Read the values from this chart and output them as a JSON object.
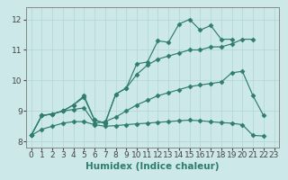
{
  "xlabel": "Humidex (Indice chaleur)",
  "xlim": [
    -0.5,
    23.5
  ],
  "ylim": [
    7.8,
    12.4
  ],
  "bg_color": "#cde8e8",
  "line_color": "#2e7d6e",
  "grid_color": "#b0d4d4",
  "series": [
    {
      "x": [
        0,
        1,
        2,
        3,
        4,
        5,
        6,
        7,
        8,
        9,
        10,
        11,
        12,
        13,
        14,
        15,
        16,
        17,
        18,
        19
      ],
      "y": [
        8.2,
        8.85,
        8.9,
        9.0,
        9.2,
        9.45,
        8.7,
        8.6,
        9.55,
        9.75,
        10.55,
        10.6,
        11.3,
        11.25,
        11.85,
        12.0,
        11.65,
        11.8,
        11.35,
        11.35
      ],
      "marker": "D",
      "markersize": 2.5
    },
    {
      "x": [
        0,
        1,
        2,
        3,
        4,
        5,
        6,
        7,
        8,
        9,
        10,
        11,
        12,
        13,
        14,
        15,
        16,
        17,
        18,
        19,
        20,
        21
      ],
      "y": [
        8.2,
        8.85,
        8.9,
        9.0,
        9.2,
        9.5,
        8.7,
        8.6,
        9.55,
        9.75,
        10.2,
        10.5,
        10.7,
        10.8,
        10.9,
        11.0,
        11.0,
        11.1,
        11.1,
        11.2,
        11.35,
        11.35
      ],
      "marker": "D",
      "markersize": 2.5
    },
    {
      "x": [
        0,
        1,
        2,
        3,
        4,
        5,
        6,
        7,
        8,
        9,
        10,
        11,
        12,
        13,
        14,
        15,
        16,
        17,
        18,
        19,
        20,
        21,
        22
      ],
      "y": [
        8.2,
        8.85,
        8.9,
        9.0,
        9.05,
        9.1,
        8.6,
        8.65,
        8.8,
        9.0,
        9.2,
        9.35,
        9.5,
        9.6,
        9.7,
        9.8,
        9.85,
        9.9,
        9.95,
        10.25,
        10.3,
        9.5,
        8.85
      ],
      "marker": "D",
      "markersize": 2.5
    },
    {
      "x": [
        0,
        1,
        2,
        3,
        4,
        5,
        6,
        7,
        8,
        9,
        10,
        11,
        12,
        13,
        14,
        15,
        16,
        17,
        18,
        19,
        20,
        21,
        22
      ],
      "y": [
        8.2,
        8.4,
        8.5,
        8.6,
        8.65,
        8.65,
        8.55,
        8.5,
        8.52,
        8.55,
        8.58,
        8.6,
        8.63,
        8.65,
        8.68,
        8.7,
        8.68,
        8.65,
        8.62,
        8.6,
        8.55,
        8.2,
        8.18
      ],
      "marker": "D",
      "markersize": 2.5
    }
  ],
  "xticks": [
    0,
    1,
    2,
    3,
    4,
    5,
    6,
    7,
    8,
    9,
    10,
    11,
    12,
    13,
    14,
    15,
    16,
    17,
    18,
    19,
    20,
    21,
    22,
    23
  ],
  "yticks": [
    8,
    9,
    10,
    11,
    12
  ],
  "tick_fontsize": 6.5,
  "xlabel_fontsize": 7.5
}
